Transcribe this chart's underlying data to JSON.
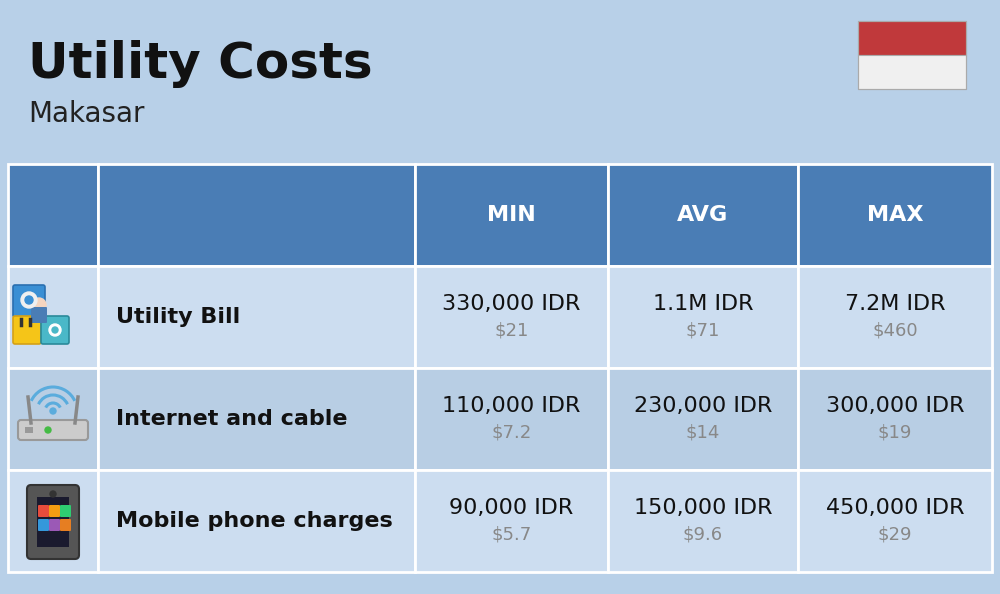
{
  "title": "Utility Costs",
  "subtitle": "Makasar",
  "background_color": "#b8d0e8",
  "header_color": "#4a7db5",
  "header_text_color": "#ffffff",
  "row_bg_light": "#ccddf0",
  "row_bg_dark": "#b8cee4",
  "table_border_color": "#ffffff",
  "flag_red": "#c0393b",
  "flag_white": "#f0f0f0",
  "usd_color": "#888888",
  "rows": [
    {
      "label": "Utility Bill",
      "min_idr": "330,000 IDR",
      "min_usd": "$21",
      "avg_idr": "1.1M IDR",
      "avg_usd": "$71",
      "max_idr": "7.2M IDR",
      "max_usd": "$460"
    },
    {
      "label": "Internet and cable",
      "min_idr": "110,000 IDR",
      "min_usd": "$7.2",
      "avg_idr": "230,000 IDR",
      "avg_usd": "$14",
      "max_idr": "300,000 IDR",
      "max_usd": "$19"
    },
    {
      "label": "Mobile phone charges",
      "min_idr": "90,000 IDR",
      "min_usd": "$5.7",
      "avg_idr": "150,000 IDR",
      "avg_usd": "$9.6",
      "max_idr": "450,000 IDR",
      "max_usd": "$29"
    }
  ]
}
